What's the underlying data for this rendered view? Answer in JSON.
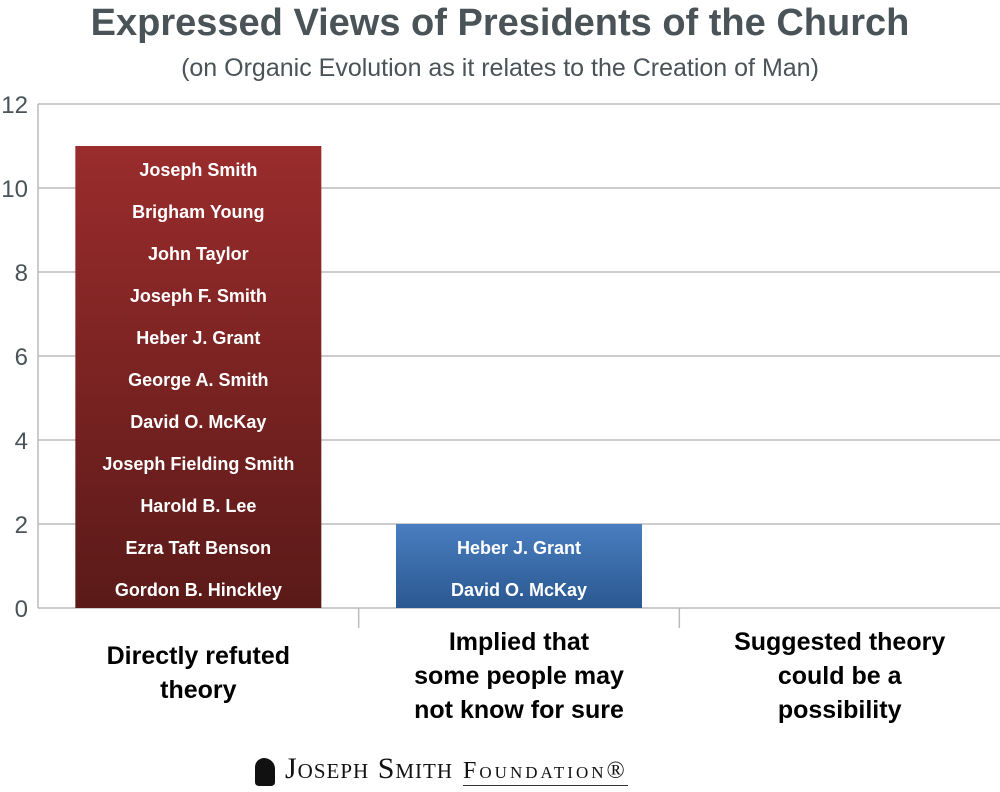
{
  "chart_data": {
    "type": "bar",
    "title": "Expressed Views of Presidents of the Church",
    "subtitle": "(on Organic Evolution as it relates to the Creation of Man)",
    "categories": [
      "Directly refuted theory",
      "Implied that some people may not know for sure",
      "Suggested theory could be a possibility"
    ],
    "category_lines": [
      [
        "Directly refuted",
        "theory"
      ],
      [
        "Implied that",
        "some people may",
        "not know for sure"
      ],
      [
        "Suggested theory",
        "could be a",
        "possibility"
      ]
    ],
    "values": [
      11,
      2,
      0
    ],
    "bar_labels": [
      [
        "Joseph Smith",
        "Brigham Young",
        "John Taylor",
        "Joseph F. Smith",
        "Heber J. Grant",
        "George A. Smith",
        "David O. McKay",
        "Joseph Fielding Smith",
        "Harold B. Lee",
        "Ezra Taft Benson",
        "Gordon B. Hinckley"
      ],
      [
        "Heber J. Grant",
        "David O. McKay"
      ],
      []
    ],
    "colors": [
      [
        "#9a2c2c",
        "#5a1a18"
      ],
      [
        "#4a7ec0",
        "#2a5890"
      ],
      [
        "#888",
        "#666"
      ]
    ],
    "yticks": [
      0,
      2,
      4,
      6,
      8,
      10,
      12
    ],
    "ylim": [
      0,
      12
    ],
    "grid": true
  },
  "logo": {
    "name": "Joseph Smith",
    "suffix": "Foundation®"
  }
}
